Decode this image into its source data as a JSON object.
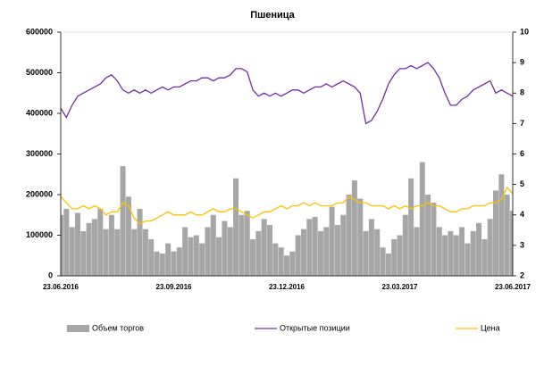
{
  "chart_data": {
    "type": "bar-line",
    "title": "Пшеница",
    "categories": [
      "23.06.2016",
      null,
      null,
      null,
      null,
      null,
      null,
      null,
      null,
      null,
      null,
      null,
      null,
      null,
      null,
      null,
      null,
      null,
      null,
      null,
      "23.09.2016",
      null,
      null,
      null,
      null,
      null,
      null,
      null,
      null,
      null,
      null,
      null,
      null,
      null,
      null,
      null,
      null,
      null,
      null,
      null,
      "23.12.2016",
      null,
      null,
      null,
      null,
      null,
      null,
      null,
      null,
      null,
      null,
      null,
      null,
      null,
      null,
      null,
      null,
      null,
      null,
      null,
      "23.03.2017",
      null,
      null,
      null,
      null,
      null,
      null,
      null,
      null,
      null,
      null,
      null,
      null,
      null,
      null,
      null,
      null,
      null,
      null,
      null,
      "23.06.2017"
    ],
    "series": [
      {
        "name": "Объем торгов",
        "type": "bar",
        "color": "#a6a6a6",
        "axis": "y",
        "values": [
          150000,
          165000,
          120000,
          155000,
          110000,
          130000,
          140000,
          165000,
          115000,
          150000,
          115000,
          270000,
          195000,
          115000,
          165000,
          115000,
          90000,
          60000,
          55000,
          80000,
          60000,
          70000,
          120000,
          95000,
          100000,
          80000,
          120000,
          150000,
          95000,
          135000,
          120000,
          240000,
          150000,
          160000,
          90000,
          110000,
          140000,
          125000,
          80000,
          70000,
          50000,
          60000,
          100000,
          115000,
          140000,
          145000,
          110000,
          120000,
          170000,
          125000,
          150000,
          200000,
          235000,
          190000,
          110000,
          140000,
          115000,
          70000,
          55000,
          90000,
          100000,
          150000,
          240000,
          120000,
          280000,
          200000,
          180000,
          120000,
          100000,
          110000,
          100000,
          120000,
          80000,
          110000,
          130000,
          90000,
          140000,
          210000,
          250000,
          200000,
          160000
        ]
      },
      {
        "name": "Открытые позиции",
        "type": "line",
        "color": "#7030a0",
        "axis": "y2",
        "values": [
          7.5,
          7.2,
          7.6,
          7.9,
          8.0,
          8.1,
          8.2,
          8.3,
          8.5,
          8.6,
          8.4,
          8.1,
          8.0,
          8.1,
          8.0,
          8.1,
          8.0,
          8.1,
          8.2,
          8.1,
          8.2,
          8.2,
          8.3,
          8.4,
          8.4,
          8.5,
          8.5,
          8.4,
          8.5,
          8.5,
          8.6,
          8.8,
          8.8,
          8.7,
          8.1,
          7.9,
          8.0,
          7.9,
          8.0,
          7.9,
          8.0,
          8.1,
          8.1,
          8.0,
          8.1,
          8.2,
          8.2,
          8.3,
          8.2,
          8.3,
          8.4,
          8.3,
          8.2,
          8.0,
          7.0,
          7.1,
          7.4,
          7.8,
          8.3,
          8.6,
          8.8,
          8.8,
          8.9,
          8.8,
          8.9,
          9.0,
          8.8,
          8.5,
          8.0,
          7.6,
          7.6,
          7.8,
          7.9,
          8.1,
          8.2,
          8.3,
          8.4,
          8.0,
          8.1,
          8.0,
          7.9
        ]
      },
      {
        "name": "Цена",
        "type": "line",
        "color": "#ffc000",
        "axis": "y2",
        "values": [
          4.6,
          4.4,
          4.2,
          4.2,
          4.3,
          4.2,
          4.3,
          4.2,
          4.0,
          4.1,
          4.1,
          4.4,
          4.3,
          3.9,
          3.7,
          3.8,
          3.8,
          3.9,
          4.0,
          4.1,
          4.0,
          4.0,
          4.0,
          4.1,
          4.0,
          4.0,
          4.1,
          4.2,
          4.1,
          4.1,
          4.2,
          4.2,
          4.1,
          4.0,
          3.9,
          4.0,
          4.1,
          4.1,
          4.2,
          4.3,
          4.2,
          4.3,
          4.3,
          4.4,
          4.3,
          4.4,
          4.3,
          4.3,
          4.3,
          4.4,
          4.4,
          4.6,
          4.5,
          4.4,
          4.4,
          4.3,
          4.3,
          4.3,
          4.2,
          4.3,
          4.2,
          4.3,
          4.2,
          4.3,
          4.3,
          4.4,
          4.3,
          4.3,
          4.2,
          4.1,
          4.1,
          4.2,
          4.2,
          4.3,
          4.3,
          4.3,
          4.4,
          4.4,
          4.5,
          4.9,
          4.7
        ]
      }
    ],
    "ylim": [
      0,
      600000
    ],
    "yticks": [
      0,
      100000,
      200000,
      300000,
      400000,
      500000,
      600000
    ],
    "y2lim": [
      2,
      10
    ],
    "y2ticks": [
      2,
      3,
      4,
      5,
      6,
      7,
      8,
      9,
      10
    ],
    "legend": "bottom"
  }
}
